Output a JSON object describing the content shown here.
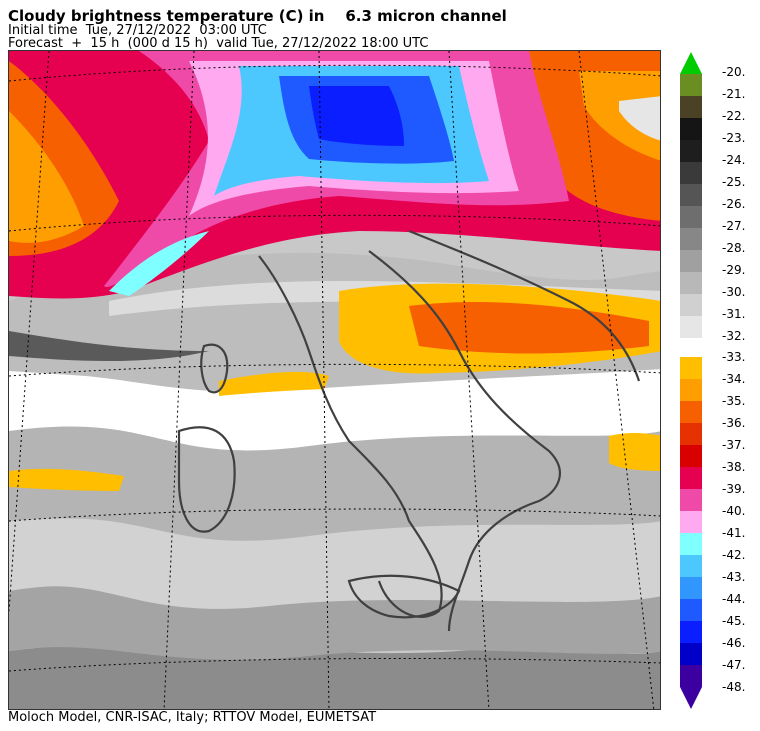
{
  "header": {
    "title": "Cloudy brightness temperature (C) in    6.3 micron channel",
    "initial_time": "Initial time  Tue, 27/12/2022  03:00 UTC",
    "forecast": "Forecast  +  15 h  (000 d 15 h)  valid Tue, 27/12/2022 18:00 UTC"
  },
  "footer": {
    "credit": "Moloch Model, CNR-ISAC, Italy; RTTOV Model, EUMETSAT"
  },
  "colorbar": {
    "upper": [
      {
        "label": "-20.",
        "color": "#00cc00"
      },
      {
        "label": "-21.",
        "color": "#6b8e23"
      },
      {
        "label": "-22.",
        "color": "#4b4226"
      },
      {
        "label": "-23.",
        "color": "#151515"
      },
      {
        "label": "-24.",
        "color": "#1e1e1e"
      },
      {
        "label": "-25.",
        "color": "#3a3a3a"
      },
      {
        "label": "-26.",
        "color": "#555555"
      },
      {
        "label": "-27.",
        "color": "#6e6e6e"
      },
      {
        "label": "-28.",
        "color": "#878787"
      },
      {
        "label": "-29.",
        "color": "#a0a0a0"
      },
      {
        "label": "-30.",
        "color": "#b8b8b8"
      },
      {
        "label": "-31.",
        "color": "#d0d0d0"
      },
      {
        "label": "-32.",
        "color": "#e6e6e6"
      }
    ],
    "lower": [
      {
        "label": "-33.",
        "color": "#ffbf00"
      },
      {
        "label": "-34.",
        "color": "#ff9e00"
      },
      {
        "label": "-35.",
        "color": "#f76000"
      },
      {
        "label": "-36.",
        "color": "#e63200"
      },
      {
        "label": "-37.",
        "color": "#d90000"
      },
      {
        "label": "-38.",
        "color": "#e60050"
      },
      {
        "label": "-39.",
        "color": "#f04aa8"
      },
      {
        "label": "-40.",
        "color": "#ffaaf0"
      },
      {
        "label": "-41.",
        "color": "#7fffff"
      },
      {
        "label": "-42.",
        "color": "#4cc8ff"
      },
      {
        "label": "-43.",
        "color": "#3296ff"
      },
      {
        "label": "-44.",
        "color": "#1e5aff"
      },
      {
        "label": "-45.",
        "color": "#0a1eff"
      },
      {
        "label": "-46.",
        "color": "#0000c8"
      },
      {
        "label": "-47.",
        "color": "#3c00a0"
      },
      {
        "label": "-48.",
        "color": "#3c00a0"
      }
    ]
  },
  "map": {
    "projection_grid": "dotted",
    "fields": {
      "clear_band": "#ffffff",
      "light_gray": "#d8d8d8",
      "mid_gray": "#bdbdbd",
      "dark_gray": "#8c8c8c",
      "coast_color": "#404040"
    }
  }
}
